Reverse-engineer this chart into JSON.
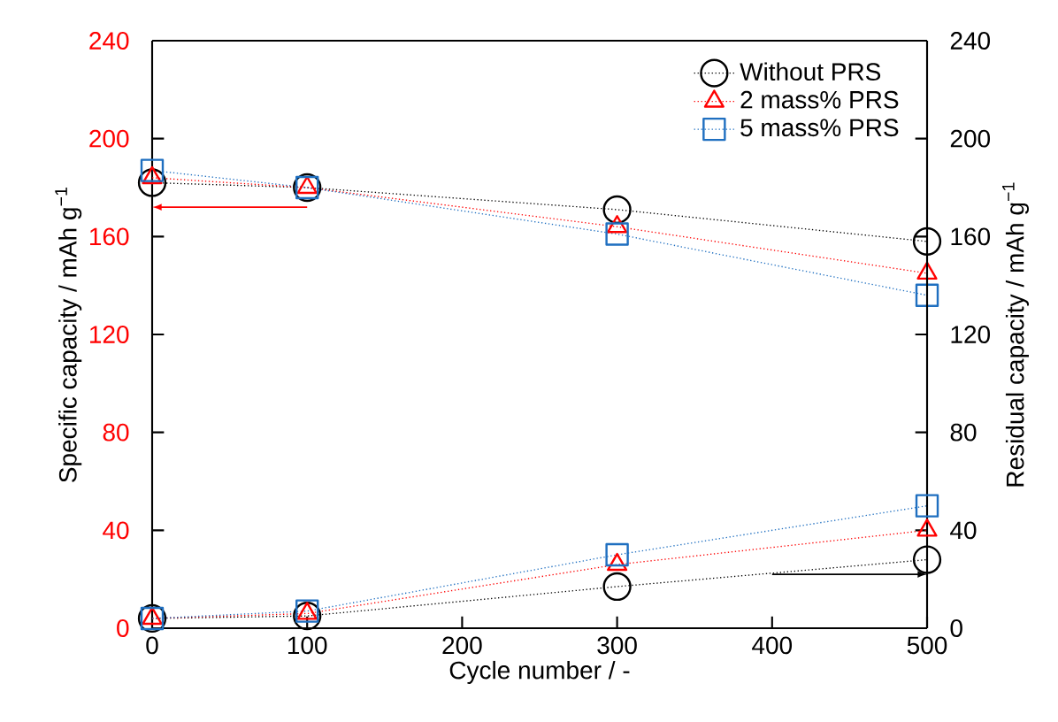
{
  "chart_data": {
    "type": "line",
    "xlabel": "Cycle number / -",
    "ylabel": "Specific capacity / mAh g$^{−1}$",
    "y2label": "Residual capacity / mAh g$^{−1}$",
    "x": [
      0,
      100,
      300,
      500
    ],
    "series": [
      {
        "name": "Without PRS",
        "color": "#000000",
        "marker": "circle",
        "values": [
          182,
          180,
          171,
          158
        ]
      },
      {
        "name": "2 mass% PRS",
        "color": "#ff0000",
        "marker": "triangle",
        "values": [
          184,
          180,
          164,
          145
        ]
      },
      {
        "name": "5 mass% PRS",
        "color": "#1f6fc0",
        "marker": "square",
        "values": [
          187,
          180,
          161,
          136
        ]
      },
      {
        "color": "#000000",
        "marker": "circle",
        "axis": "y2",
        "values": [
          4,
          5,
          17,
          28
        ]
      },
      {
        "color": "#ff0000",
        "marker": "triangle",
        "axis": "y2",
        "values": [
          4,
          6,
          26,
          40
        ]
      },
      {
        "color": "#1f6fc0",
        "marker": "square",
        "axis": "y2",
        "values": [
          4,
          7,
          30,
          50
        ]
      }
    ],
    "line_style": "dotted",
    "legend": "top right",
    "xlim": [
      0,
      500
    ],
    "xticks": [
      0,
      100,
      200,
      300,
      400,
      500
    ],
    "ylim": [
      0,
      240
    ],
    "yticks": [
      0,
      40,
      80,
      120,
      160,
      200,
      240
    ],
    "y2lim": [
      0,
      240
    ],
    "y2ticks": [
      0,
      40,
      80,
      120,
      160,
      200,
      240
    ]
  }
}
